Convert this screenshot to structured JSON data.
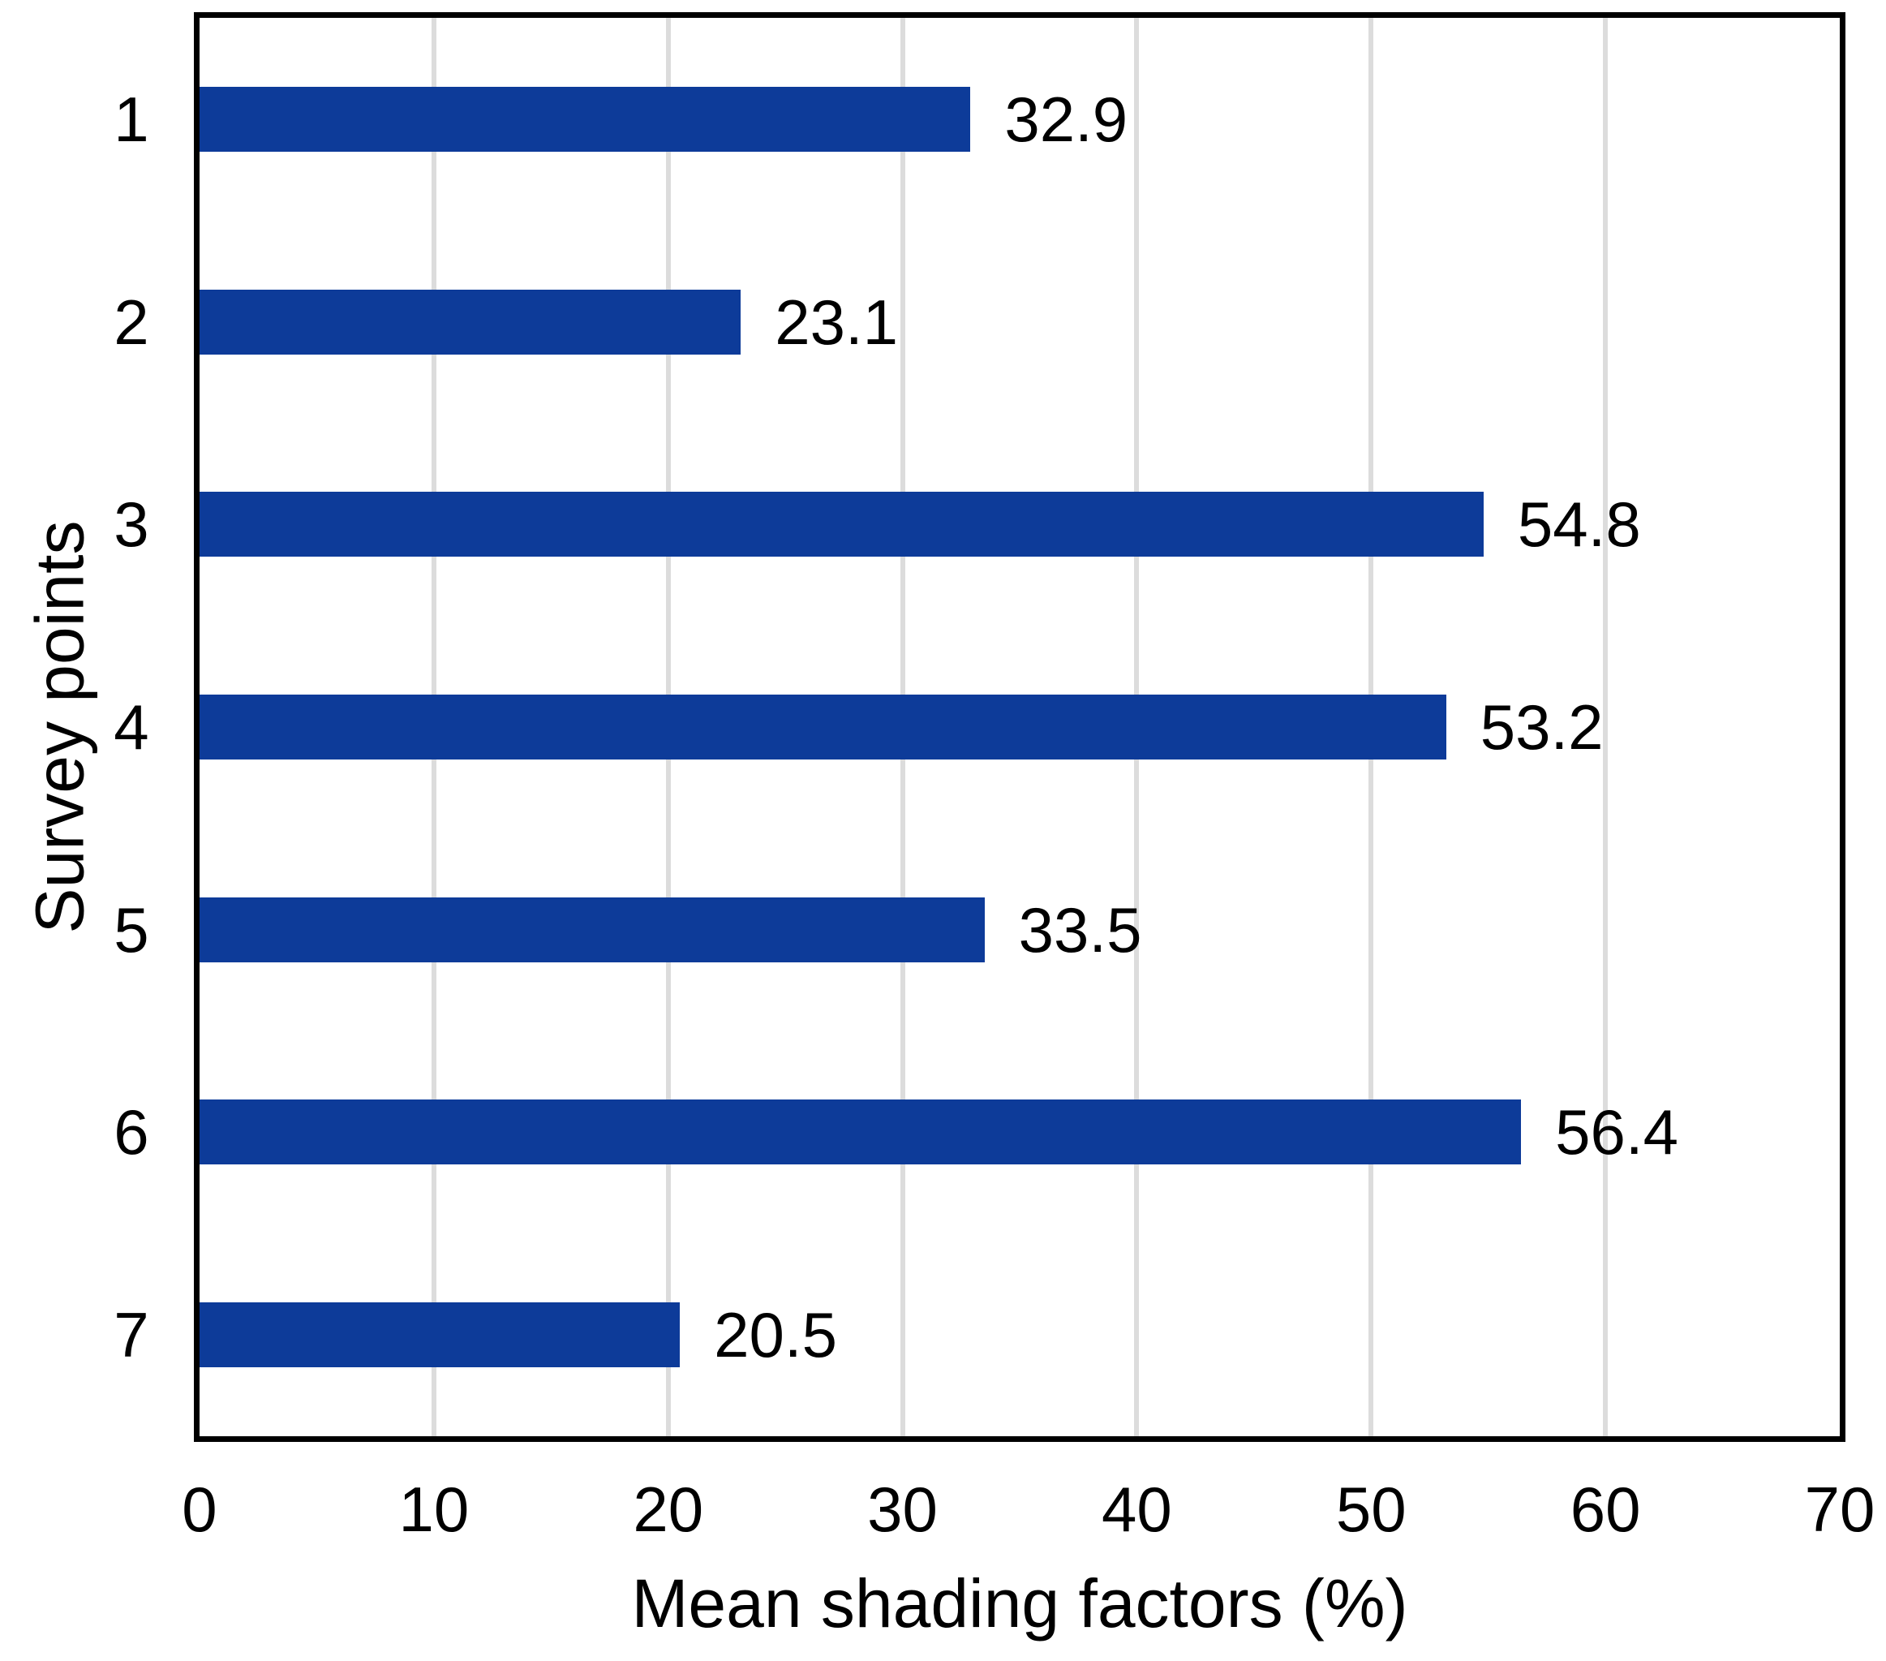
{
  "chart_data": {
    "type": "bar",
    "orientation": "horizontal",
    "title": "",
    "xlabel": "Mean shading factors (%)",
    "ylabel": "Survey points",
    "categories": [
      "1",
      "2",
      "3",
      "4",
      "5",
      "6",
      "7"
    ],
    "values": [
      32.9,
      23.1,
      54.8,
      53.2,
      33.5,
      56.4,
      20.5
    ],
    "data_labels": [
      "32.9",
      "23.1",
      "54.8",
      "53.2",
      "33.5",
      "56.4",
      "20.5"
    ],
    "xtick_labels": [
      "0",
      "10",
      "20",
      "30",
      "40",
      "50",
      "60",
      "70"
    ],
    "xticks": [
      0,
      10,
      20,
      30,
      40,
      50,
      60,
      70
    ],
    "gridline_ticks": [
      10,
      20,
      30,
      40,
      50,
      60
    ],
    "xlim": [
      0,
      70
    ],
    "grid": true,
    "legend": false,
    "colors": {
      "bar": "#0d3b99",
      "gridline": "#dcdcdc",
      "frame": "#000000",
      "text": "#000000",
      "background": "#ffffff"
    }
  }
}
